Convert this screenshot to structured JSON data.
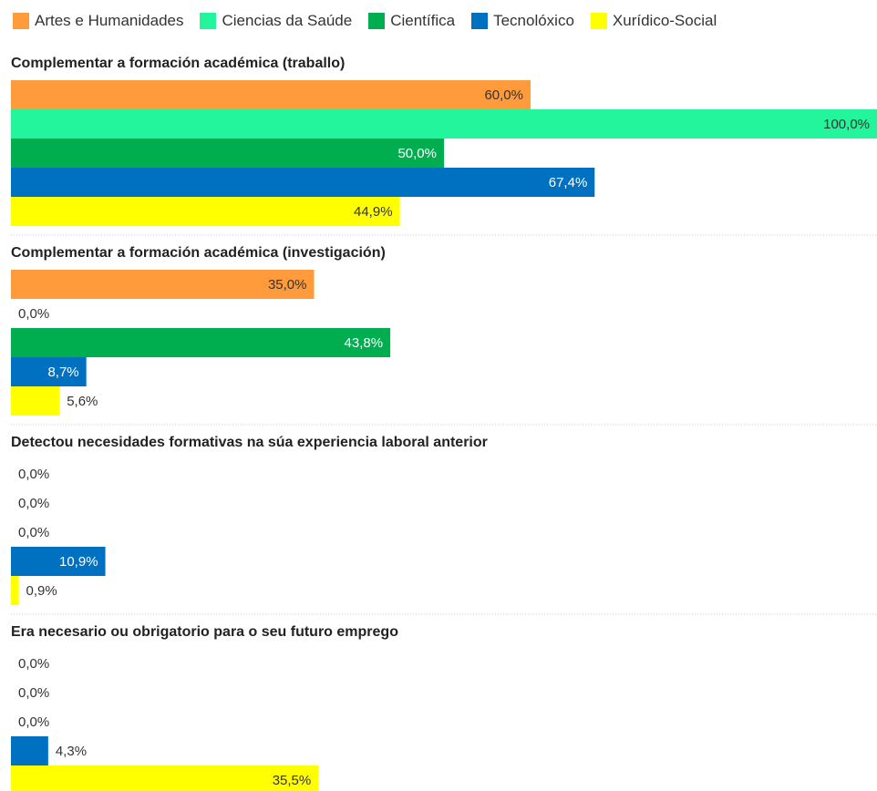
{
  "chart_data": {
    "type": "bar",
    "orientation": "horizontal",
    "categories": [
      "Complementar a formación académica (traballo)",
      "Complementar a formación académica (investigación)",
      "Detectou necesidades formativas na súa experiencia laboral anterior",
      "Era necesario ou obrigatorio para o seu futuro emprego"
    ],
    "series": [
      {
        "name": "Artes e Humanidades",
        "color": "#ff9b3b",
        "values": [
          60.0,
          35.0,
          0.0,
          0.0
        ],
        "value_labels": [
          "60,0%",
          "35,0%",
          "0,0%",
          "0,0%"
        ]
      },
      {
        "name": "Ciencias da Saúde",
        "color": "#22f59c",
        "values": [
          100.0,
          0.0,
          0.0,
          0.0
        ],
        "value_labels": [
          "100,0%",
          "0,0%",
          "0,0%",
          "0,0%"
        ]
      },
      {
        "name": "Científica",
        "color": "#00ad4f",
        "values": [
          50.0,
          43.8,
          0.0,
          0.0
        ],
        "value_labels": [
          "50,0%",
          "43,8%",
          "0,0%",
          "0,0%"
        ]
      },
      {
        "name": "Tecnolóxico",
        "color": "#0071c1",
        "values": [
          67.4,
          8.7,
          10.9,
          4.3
        ],
        "value_labels": [
          "67,4%",
          "8,7%",
          "10,9%",
          "4,3%"
        ]
      },
      {
        "name": "Xurídico-Social",
        "color": "#ffff00",
        "values": [
          44.9,
          5.6,
          0.9,
          35.5
        ],
        "value_labels": [
          "44,9%",
          "5,6%",
          "0,9%",
          "35,5%"
        ]
      }
    ],
    "xlim": [
      0,
      100
    ]
  }
}
